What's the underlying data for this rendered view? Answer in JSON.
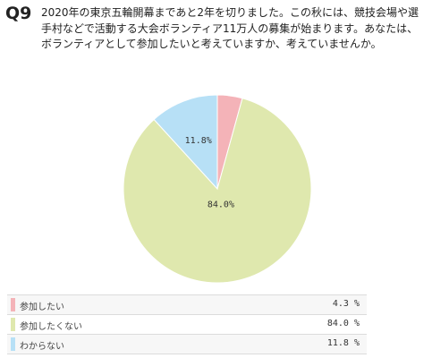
{
  "question": {
    "number": "Q9",
    "text": "2020年の東京五輪開幕まであと2年を切りました。この秋には、競技会場や選手村などで活動する大会ボランティア11万人の募集が始まります。あなたは、ボランティアとして参加したいと考えていますか、考えていませんか。"
  },
  "chart_data": {
    "type": "pie",
    "slices": [
      {
        "label": "参加したい",
        "value": 4.3,
        "display": "4.3 %",
        "slice_label": "",
        "color": "#f4b3b8"
      },
      {
        "label": "参加したくない",
        "value": 84.0,
        "display": "84.0 %",
        "slice_label": "84.0%",
        "color": "#dfe8ae"
      },
      {
        "label": "わからない",
        "value": 11.8,
        "display": "11.8 %",
        "slice_label": "11.8%",
        "color": "#b7e0f6"
      }
    ],
    "start_angle_deg": 0,
    "direction": "clockwise",
    "legend_position": "bottom"
  }
}
